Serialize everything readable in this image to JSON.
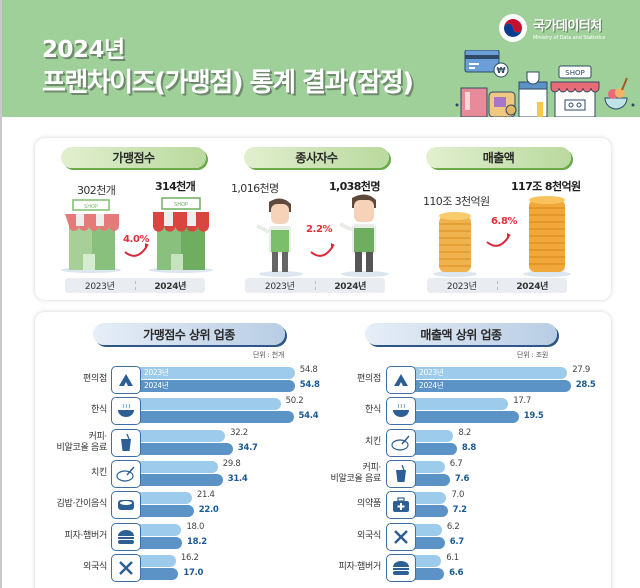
{
  "header": {
    "year_title": "2024년",
    "main_title": "프랜차이즈(가맹점) 통계 결과(잠정)",
    "logo_ko": "국가데이터처",
    "logo_en": "Ministry of Data and Statistics",
    "illustration_sign": "SHOP",
    "illustration_currency": "₩"
  },
  "summary": {
    "cards": [
      {
        "title": "가맹점수",
        "value_2023": "302천개",
        "value_2024": "314천개",
        "growth": "4.0%",
        "icon": "shop-icon",
        "shop_sign": "SHOP"
      },
      {
        "title": "종사자수",
        "value_2023": "1,016천명",
        "value_2024": "1,038천명",
        "growth": "2.2%",
        "icon": "worker-icon"
      },
      {
        "title": "매출액",
        "value_2023": "110조 3천억원",
        "value_2024": "117조 8천억원",
        "growth": "6.8%",
        "icon": "coin-stack-icon"
      }
    ],
    "year_2023": "2023년",
    "year_2024": "2024년"
  },
  "chart_data": [
    {
      "type": "bar",
      "orientation": "horizontal",
      "title": "가맹점수 상위 업종",
      "unit": "단위 : 천개",
      "categories": [
        "편의점",
        "한식",
        "커피·비알코올 음료",
        "치킨",
        "김밥·간이음식",
        "피자·햄버거",
        "외국식"
      ],
      "series": [
        {
          "name": "2023년",
          "color": "#9ccbeb",
          "values": [
            54.8,
            50.2,
            32.2,
            29.8,
            21.4,
            18.0,
            16.2
          ]
        },
        {
          "name": "2024년",
          "color": "#5b93c7",
          "values": [
            54.8,
            54.4,
            34.7,
            31.4,
            22.0,
            18.2,
            17.0
          ]
        }
      ],
      "legend": "inside first bar"
    },
    {
      "type": "bar",
      "orientation": "horizontal",
      "title": "매출액 상위 업종",
      "unit": "단위 : 조원",
      "categories": [
        "편의점",
        "한식",
        "치킨",
        "커피·비알코올 음료",
        "의약품",
        "외국식",
        "피자·햄버거"
      ],
      "series": [
        {
          "name": "2023년",
          "color": "#9ccbeb",
          "values": [
            27.9,
            17.7,
            8.2,
            6.7,
            7.0,
            6.2,
            6.1
          ]
        },
        {
          "name": "2024년",
          "color": "#5b93c7",
          "values": [
            28.5,
            19.5,
            8.8,
            7.6,
            7.2,
            6.7,
            6.6
          ]
        }
      ],
      "legend": "inside first bar"
    }
  ],
  "left_chart": {
    "title": "가맹점수 상위 업종",
    "unit": "단위 : 천개",
    "rows": [
      {
        "label": "편의점",
        "icon": "convenience-store-icon",
        "v23": "54.8",
        "v24": "54.8"
      },
      {
        "label": "한식",
        "icon": "rice-bowl-icon",
        "v23": "50.2",
        "v24": "54.4"
      },
      {
        "label": "커피·\n비알코올 음료",
        "label1": "커피·",
        "label2": "비알코올 음료",
        "icon": "drink-cup-icon",
        "v23": "32.2",
        "v24": "34.7"
      },
      {
        "label": "치킨",
        "icon": "chicken-icon",
        "v23": "29.8",
        "v24": "31.4"
      },
      {
        "label": "김밥·간이음식",
        "icon": "gimbap-icon",
        "v23": "21.4",
        "v24": "22.0"
      },
      {
        "label": "피자·햄버거",
        "icon": "burger-icon",
        "v23": "18.0",
        "v24": "18.2"
      },
      {
        "label": "외국식",
        "icon": "fork-knife-icon",
        "v23": "16.2",
        "v24": "17.0"
      }
    ]
  },
  "right_chart": {
    "title": "매출액 상위 업종",
    "unit": "단위 : 조원",
    "rows": [
      {
        "label": "편의점",
        "icon": "convenience-store-icon",
        "v23": "27.9",
        "v24": "28.5"
      },
      {
        "label": "한식",
        "icon": "rice-bowl-icon",
        "v23": "17.7",
        "v24": "19.5"
      },
      {
        "label": "치킨",
        "icon": "chicken-icon",
        "v23": "8.2",
        "v24": "8.8"
      },
      {
        "label": "커피·\n비알코올 음료",
        "label1": "커피·",
        "label2": "비알코올 음료",
        "icon": "drink-cup-icon",
        "v23": "6.7",
        "v24": "7.6"
      },
      {
        "label": "의약품",
        "icon": "medicine-kit-icon",
        "v23": "7.0",
        "v24": "7.2"
      },
      {
        "label": "외국식",
        "icon": "fork-knife-icon",
        "v23": "6.2",
        "v24": "6.7"
      },
      {
        "label": "피자·햄버거",
        "icon": "burger-icon",
        "v23": "6.1",
        "v24": "6.6"
      }
    ]
  },
  "legend": {
    "y2023": "2023년",
    "y2024": "2024년"
  }
}
